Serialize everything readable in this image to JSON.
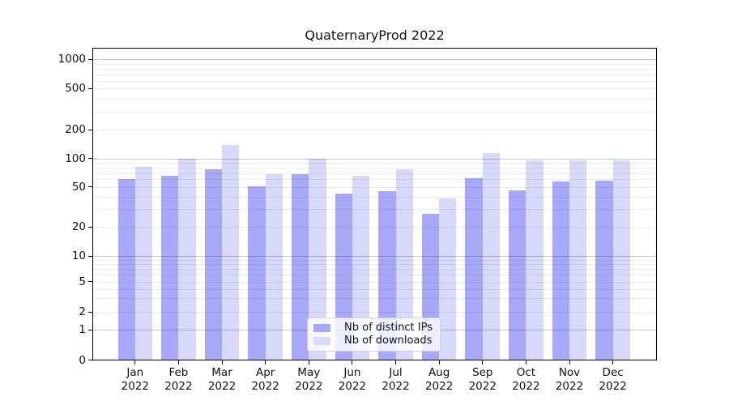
{
  "chart_data": {
    "type": "bar",
    "title": "QuaternaryProd 2022",
    "categories": [
      "Jan",
      "Feb",
      "Mar",
      "Apr",
      "May",
      "Jun",
      "Jul",
      "Aug",
      "Sep",
      "Oct",
      "Nov",
      "Dec"
    ],
    "year_label": "2022",
    "series": [
      {
        "name": "Nb of distinct IPs",
        "color": "#a8a8f8",
        "values": [
          61,
          65,
          76,
          51,
          68,
          43,
          45,
          27,
          62,
          46,
          57,
          58
        ]
      },
      {
        "name": "Nb of downloads",
        "color": "#d8d8fa",
        "values": [
          82,
          100,
          137,
          68,
          100,
          66,
          76,
          38,
          113,
          96,
          96,
          96
        ]
      }
    ],
    "y_ticks": [
      0,
      1,
      2,
      5,
      10,
      20,
      50,
      100,
      200,
      500,
      1000
    ],
    "ylim": [
      0,
      1000
    ],
    "y_scale": "symlog",
    "xlabel": "",
    "ylabel": "",
    "grid": "horizontal major and minor gridlines",
    "legend_position": "lower center"
  }
}
